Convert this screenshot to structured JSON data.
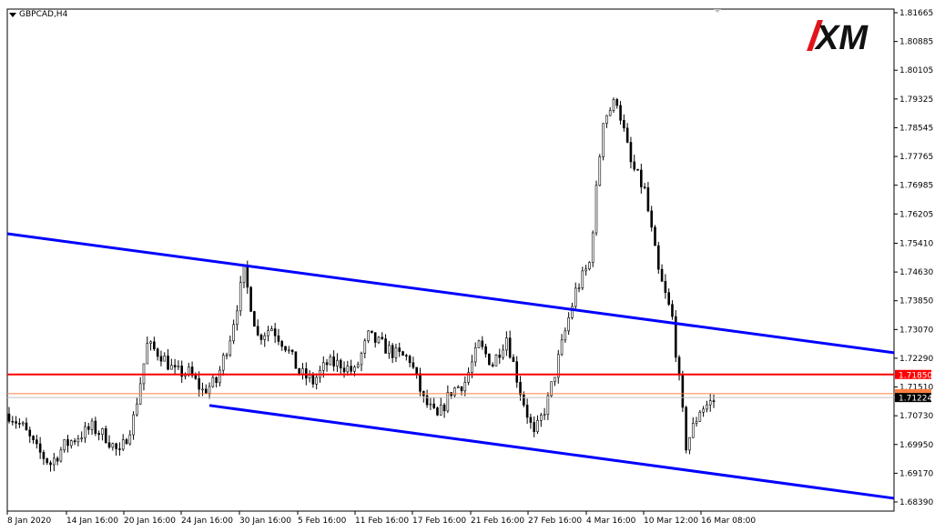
{
  "window": {
    "symbol_label": "GBPCAD,H4"
  },
  "logo": {
    "text": "XM",
    "accent": "#e3141b"
  },
  "chart_data": {
    "type": "candlestick",
    "symbol": "GBPCAD",
    "timeframe": "H4",
    "ylim": [
      1.6813,
      1.8192
    ],
    "y_ticks": [
      "1.81665",
      "1.80885",
      "1.80105",
      "1.79325",
      "1.78545",
      "1.77765",
      "1.76985",
      "1.76205",
      "1.75410",
      "1.74630",
      "1.73850",
      "1.73070",
      "1.72290",
      "1.71510",
      "1.70730",
      "1.69950",
      "1.69170",
      "1.68390"
    ],
    "x_ticks": [
      "8 Jan 2020",
      "14 Jan 16:00",
      "20 Jan 16:00",
      "24 Jan 16:00",
      "30 Jan 16:00",
      "5 Feb 16:00",
      "11 Feb 16:00",
      "17 Feb 16:00",
      "21 Feb 16:00",
      "27 Feb 16:00",
      "4 Mar 16:00",
      "10 Mar 12:00",
      "16 Mar 08:00"
    ],
    "approx_close_path": [
      1.7078,
      1.7041,
      1.698,
      1.6943,
      1.6992,
      1.7017,
      1.7041,
      1.7017,
      1.6967,
      1.7066,
      1.7264,
      1.7239,
      1.719,
      1.719,
      1.714,
      1.7165,
      1.7288,
      1.7461,
      1.7288,
      1.7313,
      1.7264,
      1.719,
      1.7165,
      1.7214,
      1.7214,
      1.719,
      1.7288,
      1.7264,
      1.7239,
      1.7227,
      1.7115,
      1.7066,
      1.714,
      1.7165,
      1.7264,
      1.7214,
      1.7288,
      1.714,
      1.7017,
      1.7115,
      1.7264,
      1.7411,
      1.7486,
      1.788,
      1.793,
      1.7757,
      1.7683,
      1.7461,
      1.7337,
      1.6992,
      1.709,
      1.7115
    ],
    "horizontal_levels": [
      {
        "price": "1.71850",
        "color": "#ff0000"
      },
      {
        "price": "1.71224",
        "color": "#000000"
      }
    ],
    "ask_line_color": "#ff8040",
    "channel": {
      "color": "#0000ff",
      "upper": {
        "start": 1.7567,
        "end": 1.7244
      },
      "lower": {
        "start": 1.7101,
        "end": 1.6849
      }
    },
    "grid": false
  }
}
